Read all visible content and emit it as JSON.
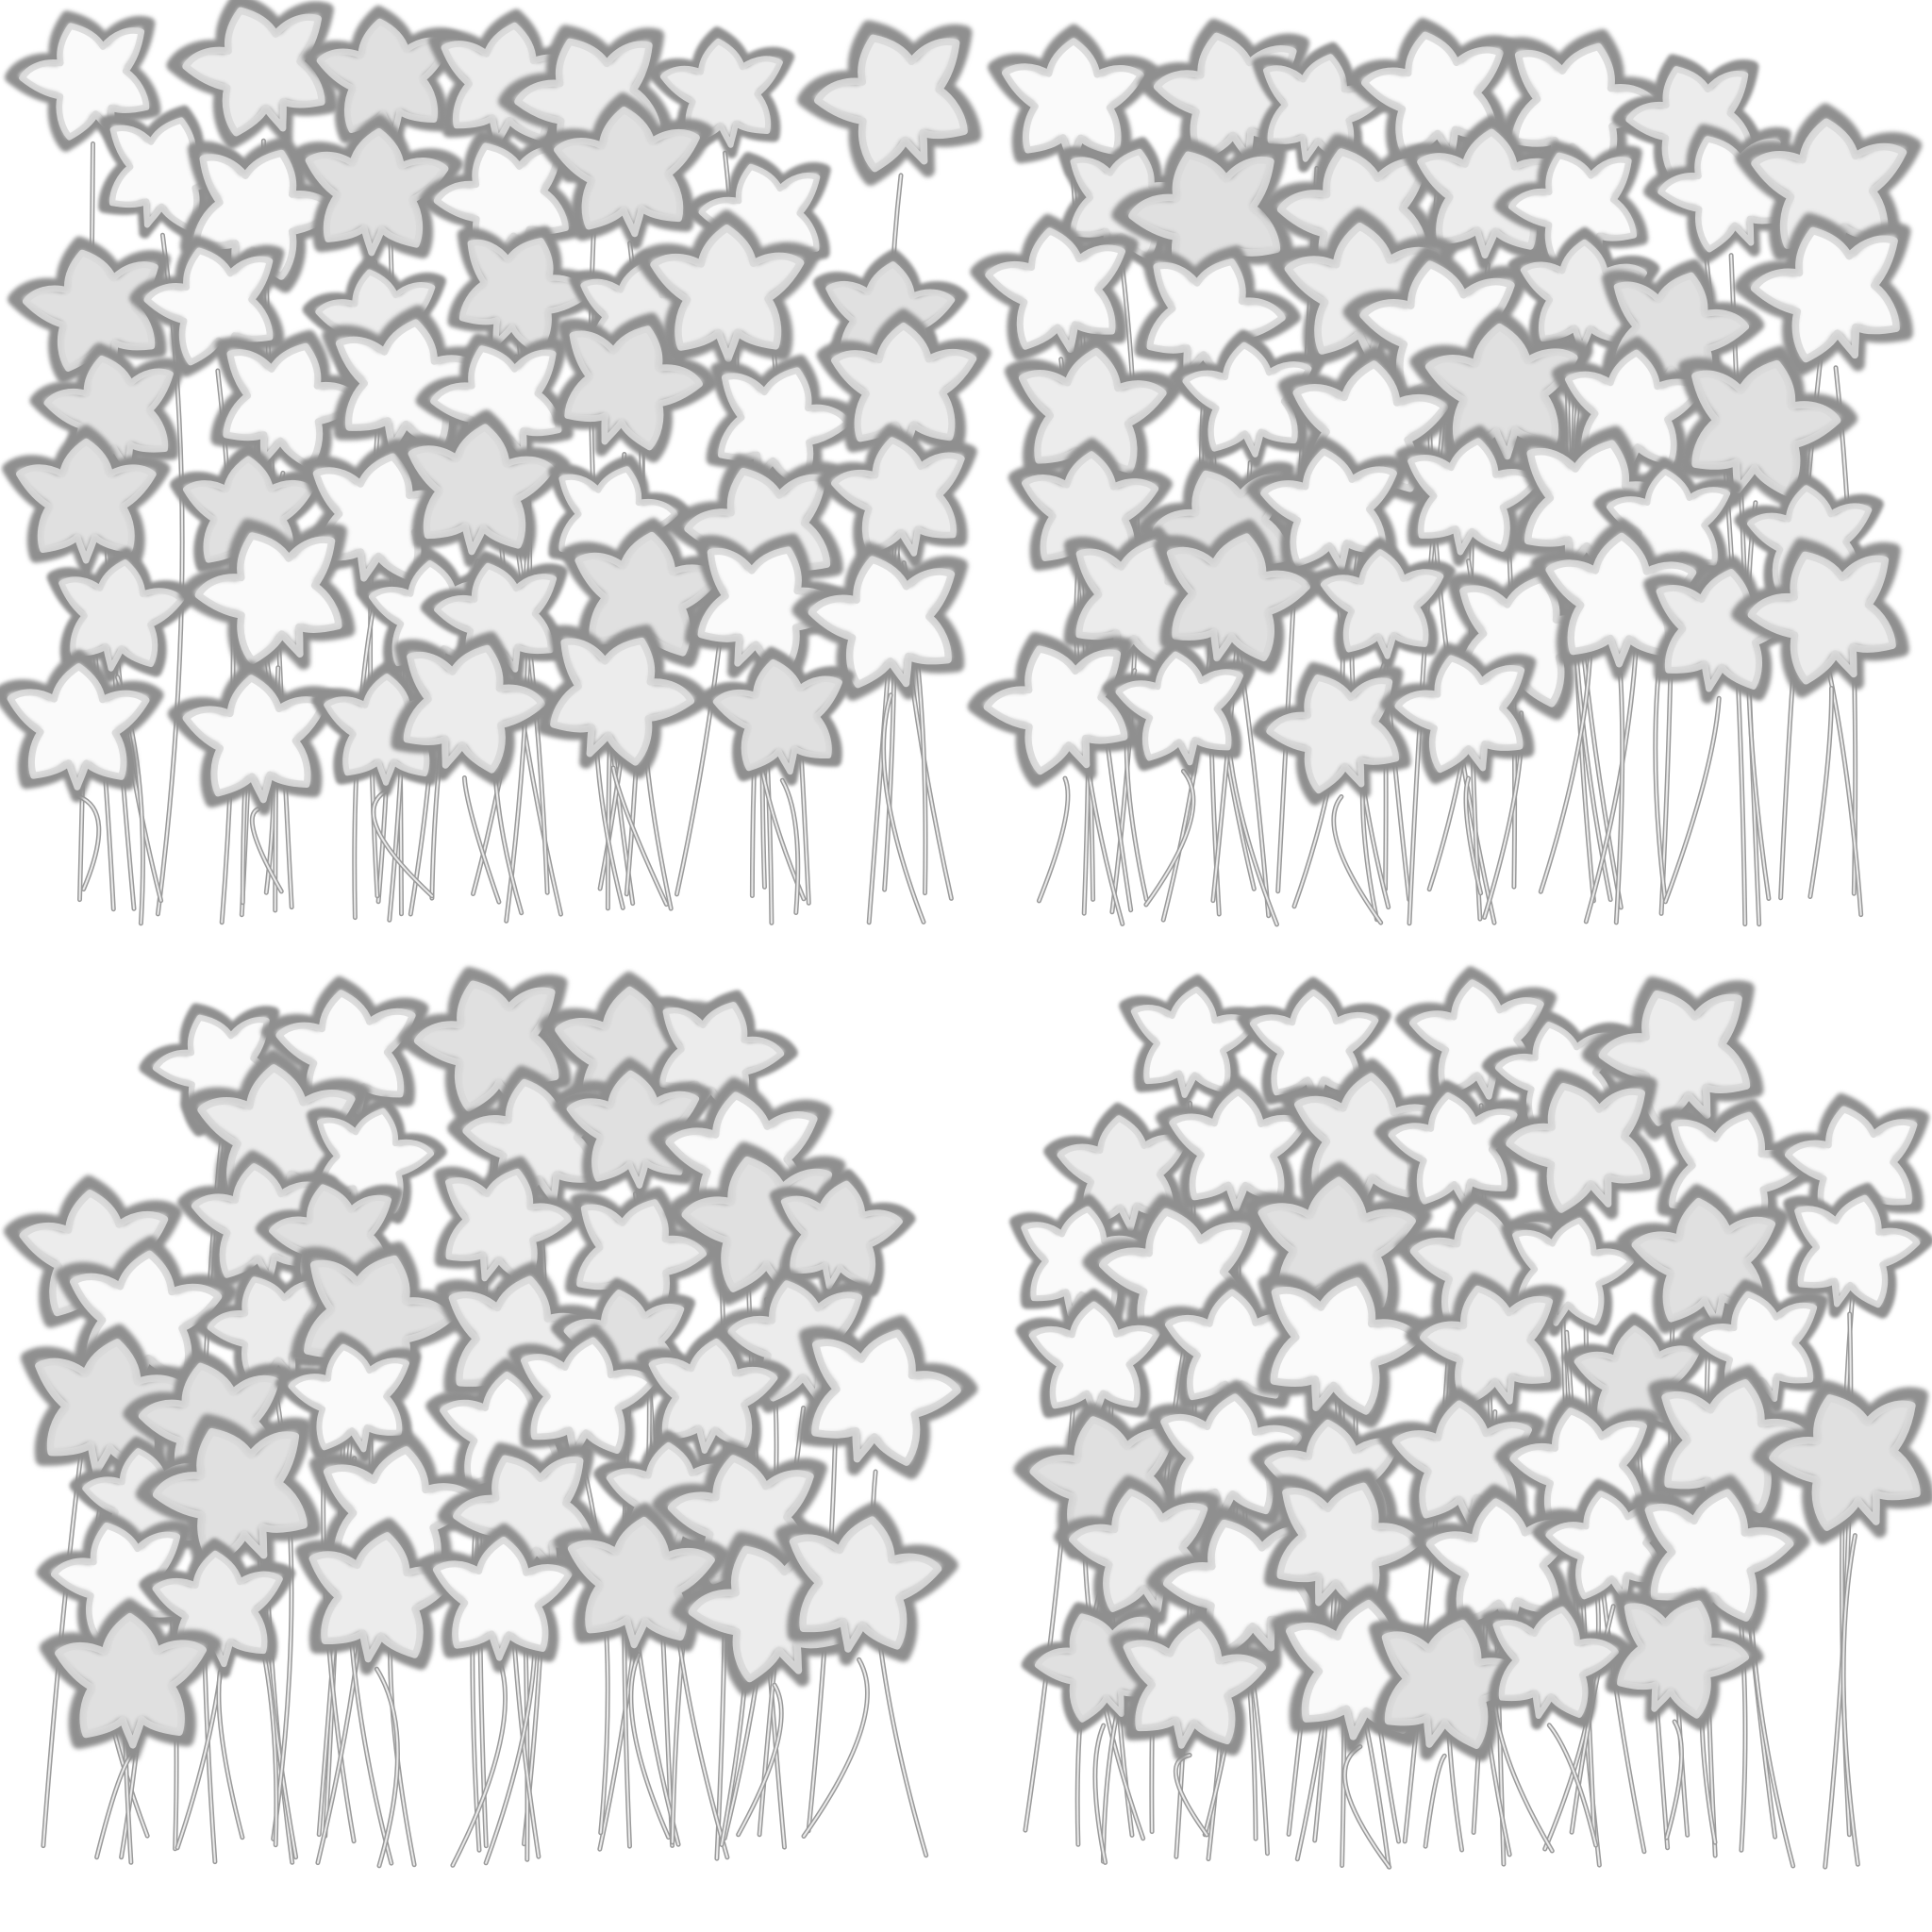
{
  "colors": {
    "background": "#ffffff",
    "leaf_outline": "#8f8f8f",
    "leaf_fill_light": "#fafafa",
    "leaf_fill_mid": "#ececec",
    "leaf_fill_dark": "#e0e0e0",
    "stem": "#9a9a9a"
  },
  "panels": [
    {
      "name": "top-left-ivy-cluster",
      "leaf_count": 48,
      "shape": "rounded-mound"
    },
    {
      "name": "top-right-ivy-cluster",
      "leaf_count": 46,
      "shape": "rounded-mound"
    },
    {
      "name": "bottom-left-ivy-cluster",
      "leaf_count": 50,
      "shape": "dome"
    },
    {
      "name": "bottom-right-ivy-cluster",
      "leaf_count": 48,
      "shape": "dome"
    }
  ]
}
